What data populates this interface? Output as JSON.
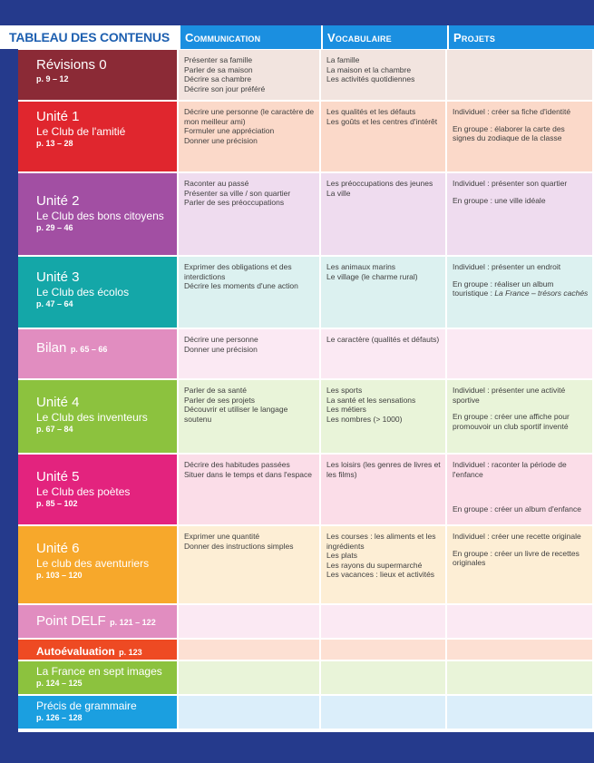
{
  "header": {
    "title": "TABLEAU DES CONTENUS",
    "columns": [
      "Communication",
      "Vocabulaire",
      "Projets"
    ]
  },
  "rows": [
    {
      "title": "Révisions 0",
      "subtitle": "",
      "pages": "p. 9 – 12",
      "color": "#8b2a36",
      "tint": "#f2e4df",
      "communication": [
        "Présenter sa famille",
        "Parler de sa maison",
        "Décrire sa chambre",
        "Décrire son jour préféré"
      ],
      "vocabulaire": [
        "La famille",
        "La maison et la chambre",
        "Les activités quotidiennes"
      ],
      "projets": []
    },
    {
      "title": "Unité 1",
      "subtitle": "Le Club de l'amitié",
      "pages": "p. 13 – 28",
      "color": "#e0262e",
      "tint": "#fbd9c9",
      "communication": [
        "Décrire une personne (le caractère de mon meilleur ami)",
        "Formuler une appréciation",
        "Donner une précision"
      ],
      "vocabulaire": [
        "Les qualités et les défauts",
        "Les goûts et les centres d'intérêt"
      ],
      "projets": [
        "Individuel : créer sa fiche d'identité",
        "En groupe : élaborer la carte des signes du zodiaque de la classe"
      ]
    },
    {
      "title": "Unité 2",
      "subtitle": "Le Club des bons citoyens",
      "pages": "p. 29 – 46",
      "color": "#a24fa3",
      "tint": "#efdcef",
      "communication": [
        "Raconter au passé",
        "Présenter sa ville / son quartier",
        "Parler de ses préoccupations"
      ],
      "vocabulaire": [
        "Les préoccupations des jeunes",
        "La ville"
      ],
      "projets": [
        "Individuel : présenter son quartier",
        "En groupe : une ville idéale"
      ]
    },
    {
      "title": "Unité 3",
      "subtitle": "Le Club des écolos",
      "pages": "p. 47 – 64",
      "color": "#14a7a8",
      "tint": "#dcf1f0",
      "communication": [
        "Exprimer des obligations et des interdictions",
        "Décrire les moments d'une action"
      ],
      "vocabulaire": [
        "Les animaux marins",
        "Le village (le charme rural)"
      ],
      "projets": [
        "Individuel : présenter un endroit",
        "En groupe : réaliser un album touristique : ",
        "La France – trésors cachés"
      ]
    },
    {
      "title": "Bilan",
      "subtitle": "",
      "pages": "p. 65 – 66",
      "color": "#e18dc0",
      "tint": "#fbe9f3",
      "communication": [
        "Décrire une personne",
        "Donner une précision"
      ],
      "vocabulaire": [
        "Le caractère (qualités et défauts)"
      ],
      "projets": []
    },
    {
      "title": "Unité 4",
      "subtitle": "Le Club des inventeurs",
      "pages": "p. 67 – 84",
      "color": "#8cc23e",
      "tint": "#e9f4d9",
      "communication": [
        "Parler de sa santé",
        "Parler de ses projets",
        "Découvrir et utiliser le langage soutenu"
      ],
      "vocabulaire": [
        "Les sports",
        "La santé et les sensations",
        "Les métiers",
        "Les nombres (> 1000)"
      ],
      "projets": [
        "Individuel : présenter une activité sportive",
        "En groupe : créer une affiche pour promouvoir un club sportif inventé"
      ]
    },
    {
      "title": "Unité 5",
      "subtitle": "Le Club des poètes",
      "pages": "p. 85 – 102",
      "color": "#e3237e",
      "tint": "#fbdde8",
      "communication": [
        "Décrire des habitudes passées",
        "Situer dans le temps et dans l'espace"
      ],
      "vocabulaire": [
        "Les loisirs (les genres de livres et les films)"
      ],
      "projets": [
        "Individuel : raconter la période de l'enfance",
        "En groupe : créer un album d'enfance"
      ]
    },
    {
      "title": "Unité 6",
      "subtitle": "Le club des aventuriers",
      "pages": "p. 103 – 120",
      "color": "#f7a82b",
      "tint": "#fdeed5",
      "communication": [
        "Exprimer une quantité",
        "Donner des instructions simples"
      ],
      "vocabulaire": [
        "Les courses : les aliments et les ingrédients",
        "Les plats",
        "Les rayons du supermarché",
        "Les vacances : lieux et activités"
      ],
      "projets": [
        "Individuel : créer une recette originale",
        "En groupe : créer un livre de recettes originales"
      ]
    },
    {
      "title": "Point DELF",
      "subtitle": "",
      "pages": "p. 121 – 122",
      "color": "#e18dc0",
      "tint": "#fbe9f3",
      "communication": [],
      "vocabulaire": [],
      "projets": []
    },
    {
      "title": "Autoévaluation",
      "subtitle": "",
      "pages": "p. 123",
      "color": "#ee4a23",
      "tint": "#fde0d3",
      "communication": [],
      "vocabulaire": [],
      "projets": []
    },
    {
      "title": "La France en sept images",
      "subtitle": "",
      "pages": "p. 124 – 125",
      "color": "#8cc23e",
      "tint": "#e9f4d9",
      "communication": [],
      "vocabulaire": [],
      "projets": []
    },
    {
      "title": "Précis de grammaire",
      "subtitle": "",
      "pages": "p. 126 – 128",
      "color": "#1b9fe0",
      "tint": "#dbeefa",
      "communication": [],
      "vocabulaire": [],
      "projets": []
    }
  ]
}
